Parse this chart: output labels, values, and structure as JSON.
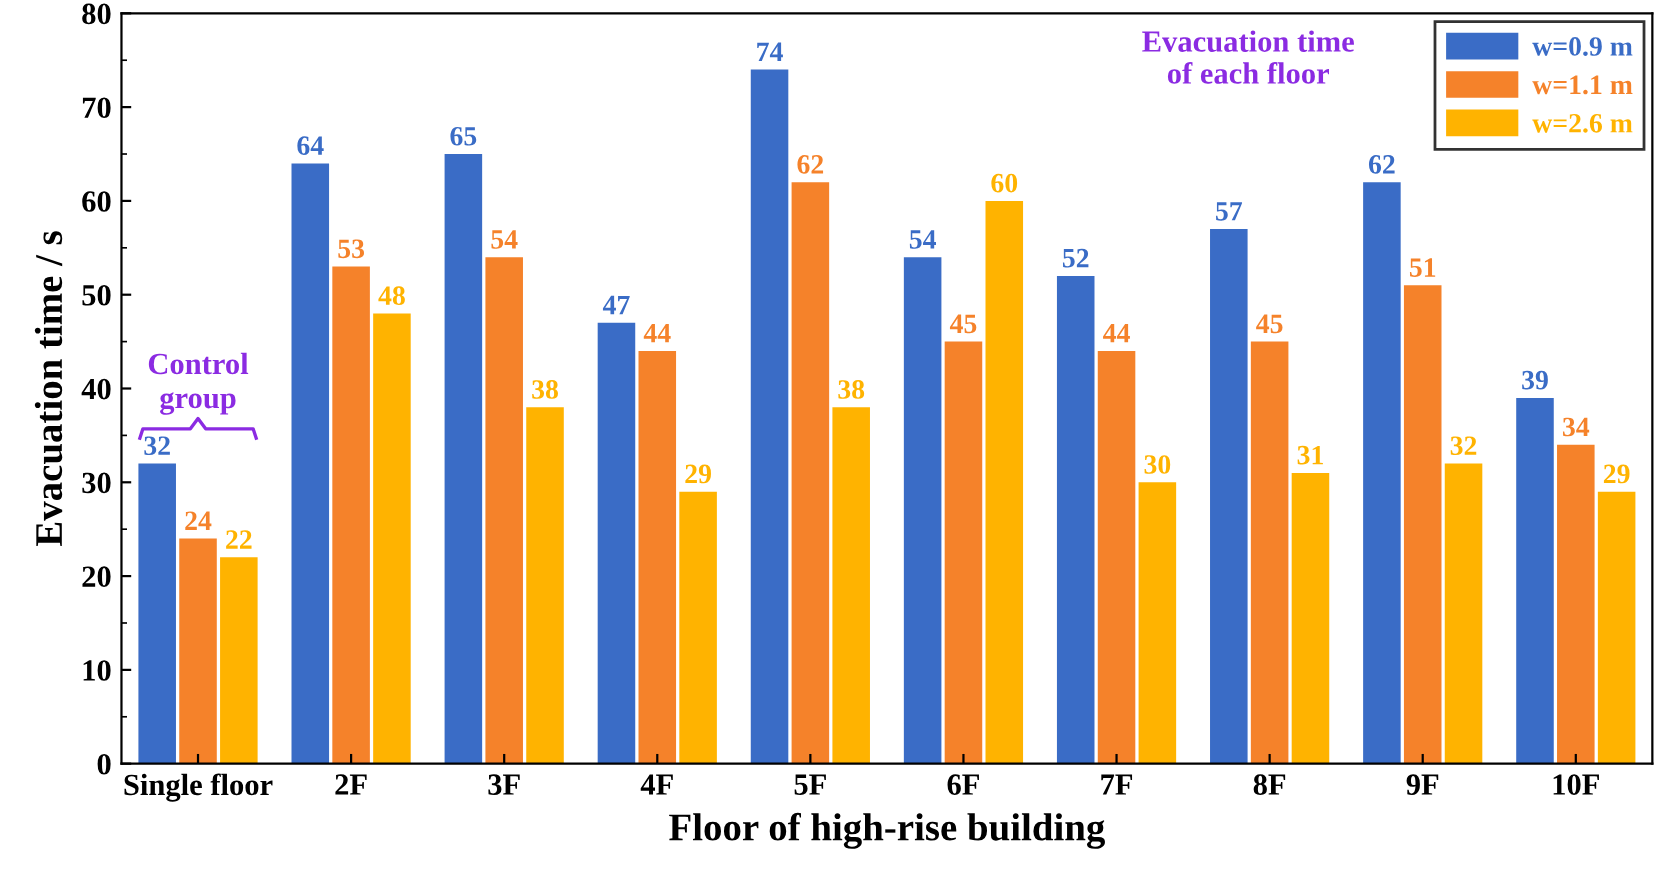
{
  "chart_data": {
    "type": "bar",
    "xlabel": "Floor of high-rise building",
    "ylabel": "Evacuation time / s",
    "categories": [
      "Single floor",
      "2F",
      "3F",
      "4F",
      "5F",
      "6F",
      "7F",
      "8F",
      "9F",
      "10F"
    ],
    "series": [
      {
        "name": "w=0.9 m",
        "color": "#3a6cc6",
        "values": [
          32,
          64,
          65,
          47,
          74,
          54,
          52,
          57,
          62,
          39
        ]
      },
      {
        "name": "w=1.1 m",
        "color": "#f5822a",
        "values": [
          24,
          53,
          54,
          44,
          62,
          45,
          44,
          45,
          51,
          34
        ]
      },
      {
        "name": "w=2.6 m",
        "color": "#ffb300",
        "values": [
          22,
          48,
          38,
          29,
          38,
          60,
          30,
          31,
          32,
          29
        ]
      }
    ],
    "ylim": [
      0,
      80
    ],
    "yticks": [
      0,
      10,
      20,
      30,
      40,
      50,
      60,
      70,
      80
    ],
    "data_labels": true,
    "legend": "top right",
    "grid": false,
    "annotations": [
      "Control\ngroup",
      "Evacuation time\nof each floor"
    ]
  }
}
